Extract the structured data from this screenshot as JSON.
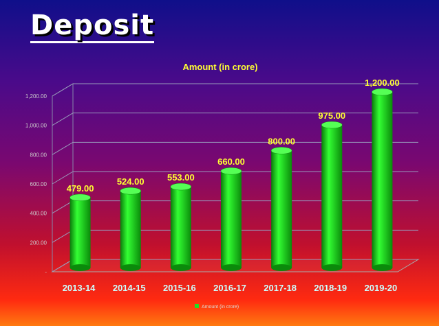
{
  "slide": {
    "title": "Deposit"
  },
  "chart_data": {
    "type": "bar",
    "title": "Amount (in crore)",
    "categories": [
      "2013-14",
      "2014-15",
      "2015-16",
      "2016-17",
      "2017-18",
      "2018-19",
      "2019-20"
    ],
    "series": [
      {
        "name": "Amount (in crore)",
        "values": [
          479,
          524,
          553,
          660,
          800,
          975,
          1200
        ]
      }
    ],
    "data_labels": [
      "479.00",
      "524.00",
      "553.00",
      "660.00",
      "800.00",
      "975.00",
      "1,200.00"
    ],
    "y_ticks": [
      0,
      200,
      400,
      600,
      800,
      1000,
      1200
    ],
    "y_tick_labels": [
      "-",
      "200.00",
      "400.00",
      "600.00",
      "800.00",
      "1,000.00",
      "1,200.00"
    ],
    "ylim": [
      0,
      1200
    ],
    "grid": true,
    "legend": "bottom",
    "colors": {
      "bar": "#22dd22",
      "bar_dark": "#0a7a0a",
      "label": "#ffff33",
      "axis_text": "#cccccc",
      "category_text": "#ccffff"
    }
  }
}
